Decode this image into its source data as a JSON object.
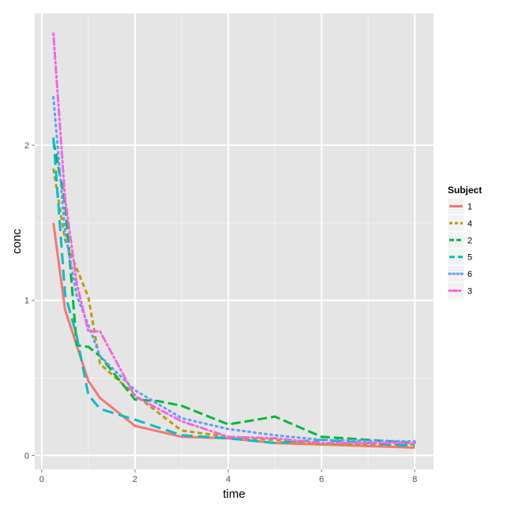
{
  "chart_data": {
    "type": "line",
    "xlabel": "time",
    "ylabel": "conc",
    "xlim": [
      -0.15,
      8.4
    ],
    "ylim": [
      -0.09,
      2.85
    ],
    "x_ticks": [
      0,
      2,
      4,
      6,
      8
    ],
    "y_ticks": [
      0,
      1,
      2
    ],
    "grid": true,
    "legend": {
      "title": "Subject",
      "placement": "right"
    },
    "series": [
      {
        "name": "1",
        "color": "#F8766D",
        "dash": "solid",
        "x": [
          0.25,
          0.5,
          1,
          1.25,
          2,
          3,
          4,
          5,
          6,
          8
        ],
        "y": [
          1.5,
          0.94,
          0.48,
          0.37,
          0.19,
          0.12,
          0.11,
          0.08,
          0.07,
          0.05
        ]
      },
      {
        "name": "4",
        "color": "#B79F00",
        "dash": "short-dash",
        "x": [
          0.25,
          0.5,
          1,
          1.25,
          2,
          3,
          4,
          5,
          6,
          8
        ],
        "y": [
          1.85,
          1.39,
          1.02,
          0.59,
          0.39,
          0.16,
          0.12,
          0.1,
          0.07,
          0.07
        ]
      },
      {
        "name": "2",
        "color": "#00BA38",
        "dash": "long-dash",
        "x": [
          0.25,
          0.5,
          0.75,
          1,
          1.25,
          2,
          2.5,
          3,
          4,
          5,
          6,
          8
        ],
        "y": [
          2.03,
          1.63,
          0.71,
          0.7,
          0.64,
          0.36,
          0.35,
          0.32,
          0.2,
          0.25,
          0.12,
          0.08
        ]
      },
      {
        "name": "5",
        "color": "#00BFC4",
        "dash": "dash",
        "x": [
          0.25,
          0.5,
          0.75,
          1,
          1.25,
          2,
          3,
          4,
          5,
          6,
          8
        ],
        "y": [
          2.05,
          1.04,
          0.77,
          0.39,
          0.3,
          0.23,
          0.13,
          0.11,
          0.08,
          0.1,
          0.06
        ]
      },
      {
        "name": "6",
        "color": "#619CFF",
        "dash": "dot",
        "x": [
          0.25,
          0.5,
          0.75,
          1,
          1.25,
          2,
          3,
          4,
          5,
          6,
          8
        ],
        "y": [
          2.31,
          1.44,
          1.03,
          0.84,
          0.64,
          0.42,
          0.24,
          0.17,
          0.13,
          0.1,
          0.09
        ]
      },
      {
        "name": "3",
        "color": "#F564E3",
        "dash": "dot-dash",
        "x": [
          0.25,
          0.5,
          0.75,
          1,
          1.25,
          2,
          3,
          4,
          5,
          6,
          8
        ],
        "y": [
          2.72,
          1.66,
          1.11,
          0.8,
          0.8,
          0.38,
          0.22,
          0.12,
          0.11,
          0.08,
          0.08
        ]
      }
    ]
  }
}
